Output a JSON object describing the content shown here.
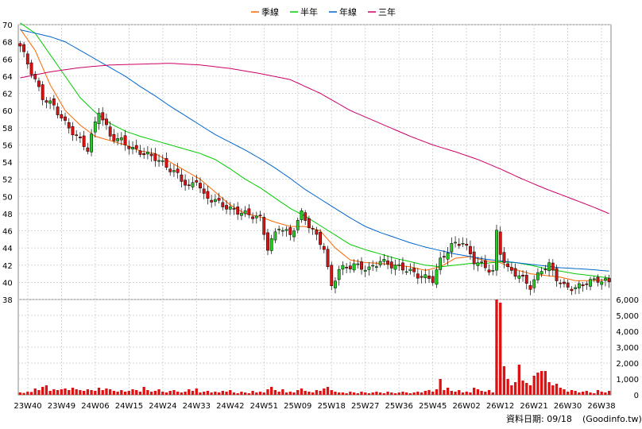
{
  "chart_data": {
    "type": "candlestick",
    "legend": [
      {
        "name": "季線",
        "color": "#ff6600"
      },
      {
        "name": "半年",
        "color": "#00cc00"
      },
      {
        "name": "年線",
        "color": "#0066cc"
      },
      {
        "name": "三年",
        "color": "#cc0066"
      }
    ],
    "price_axis": {
      "min": 38,
      "max": 70,
      "ticks": [
        38,
        40,
        42,
        44,
        46,
        48,
        50,
        52,
        54,
        56,
        58,
        60,
        62,
        64,
        66,
        68,
        70
      ]
    },
    "volume_axis": {
      "min": 0,
      "max": 6000,
      "ticks": [
        "0",
        "1,000",
        "2,000",
        "3,000",
        "4,000",
        "5,000",
        "6,000"
      ]
    },
    "x_labels": [
      "23W40",
      "23W49",
      "24W06",
      "24W15",
      "24W24",
      "24W33",
      "24W42",
      "24W51",
      "25W09",
      "25W18",
      "25W27",
      "25W36",
      "25W45",
      "26W02",
      "26W12",
      "26W21",
      "26W30",
      "26W38"
    ],
    "n_weeks": 158,
    "up_color": "#22cc22",
    "down_color": "#dd1111",
    "volume_color": "#dd1111",
    "close_anchors": [
      [
        0,
        67.5
      ],
      [
        3,
        64.5
      ],
      [
        6,
        61.5
      ],
      [
        9,
        60.5
      ],
      [
        12,
        58.5
      ],
      [
        15,
        57
      ],
      [
        18,
        55.5
      ],
      [
        21,
        60
      ],
      [
        24,
        57
      ],
      [
        27,
        56.5
      ],
      [
        30,
        55.5
      ],
      [
        33,
        55
      ],
      [
        36,
        54.5
      ],
      [
        39,
        53.5
      ],
      [
        42,
        52.5
      ],
      [
        45,
        51
      ],
      [
        47,
        52
      ],
      [
        49,
        50
      ],
      [
        52,
        49.5
      ],
      [
        56,
        48.5
      ],
      [
        60,
        48
      ],
      [
        64,
        47.5
      ],
      [
        66,
        44
      ],
      [
        69,
        46.5
      ],
      [
        72,
        45.5
      ],
      [
        75,
        48
      ],
      [
        78,
        46
      ],
      [
        81,
        44
      ],
      [
        82,
        41.5
      ],
      [
        83,
        39.5
      ],
      [
        85,
        41.5
      ],
      [
        89,
        42
      ],
      [
        93,
        41.5
      ],
      [
        96,
        42.5
      ],
      [
        99,
        42
      ],
      [
        103,
        41.5
      ],
      [
        106,
        40.8
      ],
      [
        110,
        40.3
      ],
      [
        112,
        42.5
      ],
      [
        115,
        44.3
      ],
      [
        118,
        44.7
      ],
      [
        121,
        42.5
      ],
      [
        124,
        41.8
      ],
      [
        126,
        41.2
      ],
      [
        127,
        45.8
      ],
      [
        128,
        43.5
      ],
      [
        130,
        41.5
      ],
      [
        133,
        40.8
      ],
      [
        136,
        39.5
      ],
      [
        139,
        41.5
      ],
      [
        141,
        42
      ],
      [
        143,
        40.5
      ],
      [
        145,
        39.5
      ],
      [
        148,
        39.3
      ],
      [
        151,
        40
      ],
      [
        154,
        40.3
      ],
      [
        157,
        40
      ]
    ],
    "ma_quarter": [
      [
        0,
        69.5
      ],
      [
        4,
        67
      ],
      [
        8,
        63
      ],
      [
        12,
        60
      ],
      [
        16,
        58.3
      ],
      [
        20,
        57
      ],
      [
        24,
        56.5
      ],
      [
        28,
        56
      ],
      [
        32,
        55.3
      ],
      [
        36,
        55
      ],
      [
        40,
        54
      ],
      [
        44,
        53
      ],
      [
        48,
        52
      ],
      [
        52,
        50.5
      ],
      [
        56,
        49
      ],
      [
        60,
        48
      ],
      [
        64,
        47.6
      ],
      [
        68,
        47
      ],
      [
        72,
        46.5
      ],
      [
        76,
        46.5
      ],
      [
        80,
        46
      ],
      [
        84,
        44
      ],
      [
        88,
        42.6
      ],
      [
        92,
        42.3
      ],
      [
        96,
        42.2
      ],
      [
        100,
        42
      ],
      [
        104,
        41.8
      ],
      [
        108,
        41.4
      ],
      [
        112,
        41.8
      ],
      [
        116,
        42.8
      ],
      [
        120,
        43
      ],
      [
        124,
        42.5
      ],
      [
        128,
        42.3
      ],
      [
        132,
        41.5
      ],
      [
        136,
        41
      ],
      [
        140,
        40.8
      ],
      [
        144,
        40.6
      ],
      [
        148,
        40.2
      ],
      [
        152,
        40.2
      ],
      [
        157,
        40.3
      ]
    ],
    "ma_half": [
      [
        0,
        70.2
      ],
      [
        4,
        69
      ],
      [
        8,
        66.5
      ],
      [
        12,
        64
      ],
      [
        16,
        61.5
      ],
      [
        20,
        59.8
      ],
      [
        24,
        58.5
      ],
      [
        28,
        57.6
      ],
      [
        32,
        57
      ],
      [
        36,
        56.5
      ],
      [
        40,
        56
      ],
      [
        44,
        55.5
      ],
      [
        48,
        55
      ],
      [
        52,
        54.3
      ],
      [
        56,
        53.2
      ],
      [
        60,
        52
      ],
      [
        64,
        51
      ],
      [
        68,
        49.8
      ],
      [
        72,
        48.6
      ],
      [
        76,
        47.7
      ],
      [
        80,
        46.6
      ],
      [
        84,
        45.5
      ],
      [
        88,
        44.4
      ],
      [
        92,
        43.8
      ],
      [
        96,
        43.3
      ],
      [
        100,
        42.8
      ],
      [
        104,
        42.4
      ],
      [
        108,
        42
      ],
      [
        112,
        41.8
      ],
      [
        116,
        42
      ],
      [
        120,
        42.2
      ],
      [
        124,
        42.2
      ],
      [
        128,
        42.4
      ],
      [
        132,
        42.3
      ],
      [
        136,
        42
      ],
      [
        140,
        41.6
      ],
      [
        144,
        41.3
      ],
      [
        148,
        41
      ],
      [
        152,
        40.8
      ],
      [
        157,
        40.5
      ]
    ],
    "ma_year": [
      [
        0,
        69.4
      ],
      [
        4,
        69
      ],
      [
        8,
        68.6
      ],
      [
        12,
        68
      ],
      [
        16,
        67
      ],
      [
        20,
        66
      ],
      [
        24,
        65
      ],
      [
        28,
        64
      ],
      [
        32,
        62.8
      ],
      [
        36,
        61.7
      ],
      [
        40,
        60.5
      ],
      [
        44,
        59.4
      ],
      [
        48,
        58.3
      ],
      [
        52,
        57.2
      ],
      [
        56,
        56.3
      ],
      [
        60,
        55.4
      ],
      [
        64,
        54.4
      ],
      [
        68,
        53.3
      ],
      [
        72,
        52.1
      ],
      [
        76,
        50.8
      ],
      [
        80,
        49.7
      ],
      [
        84,
        48.6
      ],
      [
        88,
        47.5
      ],
      [
        92,
        46.5
      ],
      [
        96,
        45.8
      ],
      [
        100,
        45.2
      ],
      [
        104,
        44.6
      ],
      [
        108,
        44.1
      ],
      [
        112,
        43.7
      ],
      [
        116,
        43.3
      ],
      [
        120,
        43
      ],
      [
        124,
        42.7
      ],
      [
        128,
        42.5
      ],
      [
        132,
        42.3
      ],
      [
        136,
        42.1
      ],
      [
        140,
        41.9
      ],
      [
        144,
        41.7
      ],
      [
        148,
        41.6
      ],
      [
        152,
        41.5
      ],
      [
        157,
        41.3
      ]
    ],
    "ma_3year": [
      [
        0,
        63.8
      ],
      [
        8,
        64.5
      ],
      [
        16,
        65
      ],
      [
        24,
        65.3
      ],
      [
        32,
        65.4
      ],
      [
        40,
        65.5
      ],
      [
        48,
        65.3
      ],
      [
        56,
        64.9
      ],
      [
        64,
        64.3
      ],
      [
        72,
        63.6
      ],
      [
        80,
        62
      ],
      [
        88,
        60
      ],
      [
        96,
        58.5
      ],
      [
        104,
        57
      ],
      [
        110,
        56
      ],
      [
        116,
        55.2
      ],
      [
        122,
        54.3
      ],
      [
        128,
        53.2
      ],
      [
        134,
        52
      ],
      [
        140,
        50.9
      ],
      [
        146,
        49.9
      ],
      [
        152,
        48.9
      ],
      [
        157,
        48
      ]
    ],
    "volume_weeks": [
      [
        0,
        150
      ],
      [
        1,
        120
      ],
      [
        2,
        200
      ],
      [
        3,
        180
      ],
      [
        4,
        400
      ],
      [
        5,
        300
      ],
      [
        6,
        500
      ],
      [
        7,
        600
      ],
      [
        8,
        250
      ],
      [
        9,
        350
      ],
      [
        10,
        300
      ],
      [
        11,
        350
      ],
      [
        12,
        400
      ],
      [
        13,
        300
      ],
      [
        14,
        450
      ],
      [
        15,
        350
      ],
      [
        16,
        300
      ],
      [
        17,
        250
      ],
      [
        18,
        350
      ],
      [
        19,
        300
      ],
      [
        20,
        250
      ],
      [
        21,
        450
      ],
      [
        22,
        300
      ],
      [
        23,
        400
      ],
      [
        24,
        350
      ],
      [
        25,
        250
      ],
      [
        26,
        200
      ],
      [
        27,
        300
      ],
      [
        28,
        200
      ],
      [
        29,
        250
      ],
      [
        30,
        350
      ],
      [
        31,
        300
      ],
      [
        32,
        200
      ],
      [
        33,
        500
      ],
      [
        34,
        300
      ],
      [
        35,
        200
      ],
      [
        36,
        250
      ],
      [
        37,
        350
      ],
      [
        38,
        200
      ],
      [
        39,
        150
      ],
      [
        40,
        250
      ],
      [
        41,
        300
      ],
      [
        42,
        200
      ],
      [
        43,
        150
      ],
      [
        44,
        200
      ],
      [
        45,
        350
      ],
      [
        46,
        250
      ],
      [
        47,
        400
      ],
      [
        48,
        150
      ],
      [
        49,
        200
      ],
      [
        50,
        250
      ],
      [
        51,
        150
      ],
      [
        52,
        200
      ],
      [
        53,
        150
      ],
      [
        54,
        250
      ],
      [
        55,
        200
      ],
      [
        56,
        300
      ],
      [
        57,
        150
      ],
      [
        58,
        100
      ],
      [
        59,
        200
      ],
      [
        60,
        150
      ],
      [
        61,
        100
      ],
      [
        62,
        250
      ],
      [
        63,
        150
      ],
      [
        64,
        200
      ],
      [
        65,
        150
      ],
      [
        66,
        350
      ],
      [
        67,
        500
      ],
      [
        68,
        300
      ],
      [
        69,
        200
      ],
      [
        70,
        350
      ],
      [
        71,
        150
      ],
      [
        72,
        200
      ],
      [
        73,
        150
      ],
      [
        74,
        300
      ],
      [
        75,
        400
      ],
      [
        76,
        250
      ],
      [
        77,
        200
      ],
      [
        78,
        150
      ],
      [
        79,
        300
      ],
      [
        80,
        250
      ],
      [
        81,
        400
      ],
      [
        82,
        500
      ],
      [
        83,
        300
      ],
      [
        84,
        200
      ],
      [
        85,
        150
      ],
      [
        86,
        150
      ],
      [
        87,
        100
      ],
      [
        88,
        200
      ],
      [
        89,
        150
      ],
      [
        90,
        100
      ],
      [
        91,
        200
      ],
      [
        92,
        150
      ],
      [
        93,
        100
      ],
      [
        94,
        150
      ],
      [
        95,
        200
      ],
      [
        96,
        150
      ],
      [
        97,
        100
      ],
      [
        98,
        200
      ],
      [
        99,
        150
      ],
      [
        100,
        100
      ],
      [
        101,
        150
      ],
      [
        102,
        200
      ],
      [
        103,
        150
      ],
      [
        104,
        100
      ],
      [
        105,
        150
      ],
      [
        106,
        200
      ],
      [
        107,
        150
      ],
      [
        108,
        250
      ],
      [
        109,
        300
      ],
      [
        110,
        200
      ],
      [
        111,
        350
      ],
      [
        112,
        1000
      ],
      [
        113,
        300
      ],
      [
        114,
        450
      ],
      [
        115,
        250
      ],
      [
        116,
        200
      ],
      [
        117,
        300
      ],
      [
        118,
        150
      ],
      [
        119,
        200
      ],
      [
        120,
        150
      ],
      [
        121,
        450
      ],
      [
        122,
        350
      ],
      [
        123,
        250
      ],
      [
        124,
        200
      ],
      [
        125,
        300
      ],
      [
        126,
        150
      ],
      [
        127,
        6000
      ],
      [
        128,
        5800
      ],
      [
        129,
        1800
      ],
      [
        130,
        1000
      ],
      [
        131,
        600
      ],
      [
        132,
        800
      ],
      [
        133,
        1900
      ],
      [
        134,
        900
      ],
      [
        135,
        750
      ],
      [
        136,
        600
      ],
      [
        137,
        1200
      ],
      [
        138,
        1400
      ],
      [
        139,
        1500
      ],
      [
        140,
        1500
      ],
      [
        141,
        800
      ],
      [
        142,
        600
      ],
      [
        143,
        700
      ],
      [
        144,
        450
      ],
      [
        145,
        350
      ],
      [
        146,
        200
      ],
      [
        147,
        300
      ],
      [
        148,
        250
      ],
      [
        149,
        150
      ],
      [
        150,
        200
      ],
      [
        151,
        250
      ],
      [
        152,
        150
      ],
      [
        153,
        100
      ],
      [
        154,
        300
      ],
      [
        155,
        200
      ],
      [
        156,
        150
      ],
      [
        157,
        250
      ]
    ]
  },
  "footer": {
    "date_label": "資料日期: 09/18",
    "source": "(Goodinfo.tw)"
  }
}
